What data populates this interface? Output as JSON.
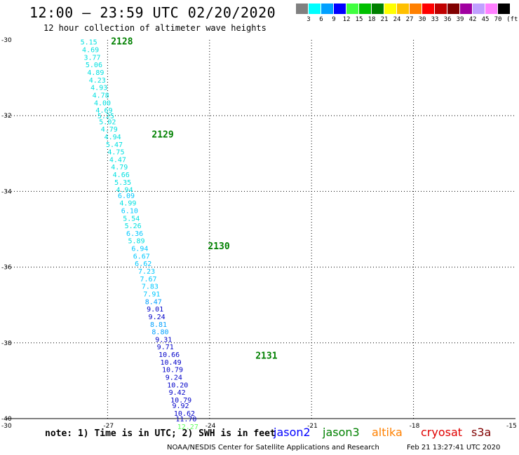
{
  "header": {
    "title": "12:00 – 23:59 UTC 02/20/2020",
    "subtitle": "12 hour collection of altimeter wave heights"
  },
  "legend": {
    "colors": [
      "#808080",
      "#00ffff",
      "#00a0ff",
      "#0000ff",
      "#40ff40",
      "#00c000",
      "#008000",
      "#ffff00",
      "#ffc000",
      "#ff8000",
      "#ff0000",
      "#c00000",
      "#800000",
      "#a000a0",
      "#c0a0ff",
      "#ff80ff",
      "#000000"
    ],
    "labels": [
      "3",
      "6",
      "9",
      "12",
      "15",
      "18",
      "21",
      "24",
      "27",
      "30",
      "33",
      "36",
      "39",
      "42",
      "45",
      "70"
    ],
    "unit": "(ft)"
  },
  "axes": {
    "lat_labels": [
      "-30",
      "-32",
      "-34",
      "-36",
      "-38",
      "-40"
    ],
    "lon_labels": [
      "-30",
      "-27",
      "-24",
      "-21",
      "-18",
      "-15"
    ]
  },
  "chart_data": {
    "type": "scatter",
    "title": "12:00 – 23:59 UTC 02/20/2020",
    "subtitle": "12 hour collection of altimeter wave heights",
    "x_range": [
      -30,
      -15
    ],
    "y_range": [
      -40,
      -30
    ],
    "points": [
      {
        "lon": -27.8,
        "lat": -30.05,
        "swh": "5.15",
        "color": "#00e0e0"
      },
      {
        "lon": -27.75,
        "lat": -30.25,
        "swh": "4.69",
        "color": "#00e0e0"
      },
      {
        "lon": -27.7,
        "lat": -30.45,
        "swh": "3.77",
        "color": "#00e0e0"
      },
      {
        "lon": -27.65,
        "lat": -30.65,
        "swh": "5.06",
        "color": "#00e0e0"
      },
      {
        "lon": -27.6,
        "lat": -30.85,
        "swh": "4.89",
        "color": "#00e0e0"
      },
      {
        "lon": -27.55,
        "lat": -31.05,
        "swh": "4.23",
        "color": "#00e0e0"
      },
      {
        "lon": -27.5,
        "lat": -31.25,
        "swh": "4.93",
        "color": "#00e0e0"
      },
      {
        "lon": -27.45,
        "lat": -31.45,
        "swh": "4.78",
        "color": "#00e0e0"
      },
      {
        "lon": -27.4,
        "lat": -31.65,
        "swh": "4.00",
        "color": "#00e0e0"
      },
      {
        "lon": -27.35,
        "lat": -31.85,
        "swh": "4.69",
        "color": "#00e0e0"
      },
      {
        "lon": -27.3,
        "lat": -32.0,
        "swh": "5.25",
        "color": "#00e0e0"
      },
      {
        "lon": -27.25,
        "lat": -32.15,
        "swh": "5.02",
        "color": "#00e0e0"
      },
      {
        "lon": -27.2,
        "lat": -32.35,
        "swh": "4.79",
        "color": "#00e0e0"
      },
      {
        "lon": -27.1,
        "lat": -32.55,
        "swh": "4.94",
        "color": "#00e0e0"
      },
      {
        "lon": -27.05,
        "lat": -32.75,
        "swh": "5.47",
        "color": "#00e0e0"
      },
      {
        "lon": -27.0,
        "lat": -32.95,
        "swh": "4.75",
        "color": "#00e0e0"
      },
      {
        "lon": -26.95,
        "lat": -33.15,
        "swh": "4.47",
        "color": "#00e0e0"
      },
      {
        "lon": -26.9,
        "lat": -33.35,
        "swh": "4.79",
        "color": "#00e0e0"
      },
      {
        "lon": -26.85,
        "lat": -33.55,
        "swh": "4.66",
        "color": "#00e0e0"
      },
      {
        "lon": -26.8,
        "lat": -33.75,
        "swh": "5.35",
        "color": "#00e0e0"
      },
      {
        "lon": -26.75,
        "lat": -33.95,
        "swh": "4.94",
        "color": "#00e0e0"
      },
      {
        "lon": -26.7,
        "lat": -34.1,
        "swh": "6.09",
        "color": "#00c8ff"
      },
      {
        "lon": -26.65,
        "lat": -34.3,
        "swh": "4.99",
        "color": "#00e0e0"
      },
      {
        "lon": -26.6,
        "lat": -34.5,
        "swh": "6.10",
        "color": "#00c8ff"
      },
      {
        "lon": -26.55,
        "lat": -34.7,
        "swh": "5.54",
        "color": "#00e0e0"
      },
      {
        "lon": -26.5,
        "lat": -34.9,
        "swh": "5.26",
        "color": "#00e0e0"
      },
      {
        "lon": -26.45,
        "lat": -35.1,
        "swh": "6.36",
        "color": "#00c8ff"
      },
      {
        "lon": -26.4,
        "lat": -35.3,
        "swh": "5.89",
        "color": "#00e0e0"
      },
      {
        "lon": -26.3,
        "lat": -35.5,
        "swh": "6.94",
        "color": "#00c8ff"
      },
      {
        "lon": -26.25,
        "lat": -35.7,
        "swh": "6.67",
        "color": "#00c8ff"
      },
      {
        "lon": -26.2,
        "lat": -35.9,
        "swh": "6.62",
        "color": "#00c8ff"
      },
      {
        "lon": -26.1,
        "lat": -36.1,
        "swh": "7.23",
        "color": "#00c8ff"
      },
      {
        "lon": -26.05,
        "lat": -36.3,
        "swh": "7.67",
        "color": "#00c8ff"
      },
      {
        "lon": -26.0,
        "lat": -36.5,
        "swh": "7.83",
        "color": "#00c8ff"
      },
      {
        "lon": -25.95,
        "lat": -36.7,
        "swh": "7.91",
        "color": "#00c8ff"
      },
      {
        "lon": -25.9,
        "lat": -36.9,
        "swh": "8.47",
        "color": "#00a0ff"
      },
      {
        "lon": -25.85,
        "lat": -37.1,
        "swh": "9.01",
        "color": "#0000c8"
      },
      {
        "lon": -25.8,
        "lat": -37.3,
        "swh": "9.24",
        "color": "#0000c8"
      },
      {
        "lon": -25.75,
        "lat": -37.5,
        "swh": "8.81",
        "color": "#00a0ff"
      },
      {
        "lon": -25.7,
        "lat": -37.7,
        "swh": "8.80",
        "color": "#00a0ff"
      },
      {
        "lon": -25.6,
        "lat": -37.9,
        "swh": "9.31",
        "color": "#0000c8"
      },
      {
        "lon": -25.55,
        "lat": -38.1,
        "swh": "9.71",
        "color": "#0000c8"
      },
      {
        "lon": -25.5,
        "lat": -38.3,
        "swh": "10.66",
        "color": "#0000c8"
      },
      {
        "lon": -25.45,
        "lat": -38.5,
        "swh": "10.49",
        "color": "#0000c8"
      },
      {
        "lon": -25.4,
        "lat": -38.7,
        "swh": "10.79",
        "color": "#0000c8"
      },
      {
        "lon": -25.3,
        "lat": -38.9,
        "swh": "9.24",
        "color": "#0000c8"
      },
      {
        "lon": -25.25,
        "lat": -39.1,
        "swh": "10.20",
        "color": "#0000c8"
      },
      {
        "lon": -25.2,
        "lat": -39.3,
        "swh": "9.42",
        "color": "#0000c8"
      },
      {
        "lon": -25.15,
        "lat": -39.5,
        "swh": "10.79",
        "color": "#0000c8"
      },
      {
        "lon": -25.1,
        "lat": -39.65,
        "swh": "9.92",
        "color": "#0000c8"
      },
      {
        "lon": -25.05,
        "lat": -39.85,
        "swh": "10.62",
        "color": "#0000c8"
      },
      {
        "lon": -25.0,
        "lat": -40.0,
        "swh": "11.70",
        "color": "#0000c8"
      },
      {
        "lon": -24.95,
        "lat": -40.2,
        "swh": "12.27",
        "color": "#60ff60"
      }
    ],
    "pass_labels": [
      {
        "lon": -26.9,
        "lat": -30.05,
        "text": "2128"
      },
      {
        "lon": -25.7,
        "lat": -32.5,
        "text": "2129"
      },
      {
        "lon": -24.05,
        "lat": -35.45,
        "text": "2130"
      },
      {
        "lon": -22.65,
        "lat": -38.35,
        "text": "2131"
      }
    ]
  },
  "footer": {
    "note": "note: 1) Time is in UTC; 2) SWH is in feet",
    "satellites": [
      {
        "name": "jason2",
        "color": "#0000ff"
      },
      {
        "name": "jason3",
        "color": "#008000"
      },
      {
        "name": "altika",
        "color": "#ff8000"
      },
      {
        "name": "cryosat",
        "color": "#e00000"
      },
      {
        "name": "s3a",
        "color": "#800000"
      }
    ],
    "credit": "NOAA/NESDIS Center for Satellite Applications and Research",
    "timestamp": "Feb 21 13:27:41 UTC 2020"
  }
}
